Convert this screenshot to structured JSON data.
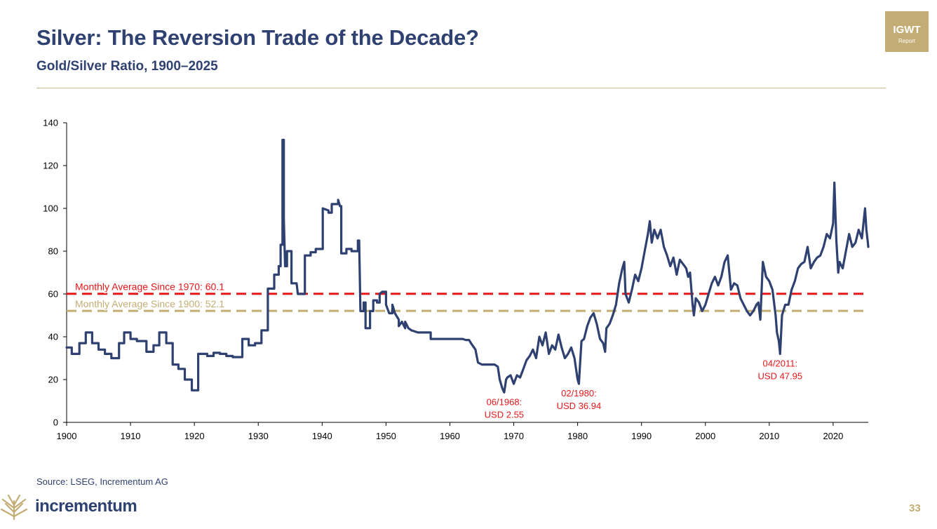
{
  "header": {
    "title": "Silver: The Reversion Trade of the Decade?",
    "subtitle": "Gold/Silver Ratio, 1900–2025"
  },
  "badge": {
    "line1": "IGWT",
    "line2": "Report"
  },
  "footer": {
    "source": "Source: LSEG, Incrementum AG",
    "brand": "incrementum",
    "page_number": "33"
  },
  "colors": {
    "series": "#2e4170",
    "avg_1970": "#e8181a",
    "avg_1900": "#c4ad74",
    "annotation": "#e8181a",
    "title": "#2e4170"
  },
  "chart_data": {
    "type": "line",
    "title": "Gold/Silver Ratio, 1900–2025",
    "xlabel": "",
    "ylabel": "",
    "xlim": [
      1900,
      2025.5
    ],
    "ylim": [
      0,
      140
    ],
    "x_ticks": [
      1900,
      1910,
      1920,
      1930,
      1940,
      1950,
      1960,
      1970,
      1980,
      1990,
      2000,
      2010,
      2020
    ],
    "y_ticks": [
      0,
      20,
      40,
      60,
      80,
      100,
      120,
      140
    ],
    "grid": false,
    "series": [
      {
        "name": "Gold/Silver Ratio",
        "points": [
          [
            1900,
            35
          ],
          [
            1900.8,
            35
          ],
          [
            1900.8,
            32
          ],
          [
            1902,
            32
          ],
          [
            1902,
            37
          ],
          [
            1903,
            37
          ],
          [
            1903,
            42
          ],
          [
            1904,
            42
          ],
          [
            1904,
            37
          ],
          [
            1905,
            37
          ],
          [
            1905,
            34
          ],
          [
            1906,
            34
          ],
          [
            1906,
            32
          ],
          [
            1907,
            32
          ],
          [
            1907,
            30
          ],
          [
            1908.2,
            30
          ],
          [
            1908.2,
            37
          ],
          [
            1909,
            37
          ],
          [
            1909,
            42
          ],
          [
            1910,
            42
          ],
          [
            1910,
            39
          ],
          [
            1911,
            39
          ],
          [
            1911,
            38
          ],
          [
            1912,
            38
          ],
          [
            1912,
            38
          ],
          [
            1912.5,
            38
          ],
          [
            1912.5,
            33
          ],
          [
            1913.6,
            33
          ],
          [
            1913.6,
            36
          ],
          [
            1914.5,
            36
          ],
          [
            1914.5,
            42
          ],
          [
            1915.6,
            42
          ],
          [
            1915.6,
            37
          ],
          [
            1916.6,
            37
          ],
          [
            1916.6,
            27
          ],
          [
            1917.5,
            27
          ],
          [
            1917.5,
            25
          ],
          [
            1918.5,
            25
          ],
          [
            1918.5,
            20
          ],
          [
            1919.6,
            20
          ],
          [
            1919.6,
            15
          ],
          [
            1920.6,
            15
          ],
          [
            1920.6,
            32
          ],
          [
            1922,
            32
          ],
          [
            1922,
            31
          ],
          [
            1923,
            31
          ],
          [
            1923,
            32.5
          ],
          [
            1924,
            32.5
          ],
          [
            1924,
            32
          ],
          [
            1925,
            32
          ],
          [
            1925,
            31
          ],
          [
            1926,
            31
          ],
          [
            1926,
            30.5
          ],
          [
            1927.5,
            30.5
          ],
          [
            1927.5,
            39
          ],
          [
            1928.5,
            39
          ],
          [
            1928.5,
            36
          ],
          [
            1929.5,
            36
          ],
          [
            1929.5,
            37
          ],
          [
            1930.5,
            37
          ],
          [
            1930.5,
            43
          ],
          [
            1931.5,
            43
          ],
          [
            1931.5,
            62.5
          ],
          [
            1932.5,
            62.5
          ],
          [
            1932.5,
            69
          ],
          [
            1933.2,
            69
          ],
          [
            1933.2,
            73
          ],
          [
            1933.5,
            73
          ],
          [
            1933.5,
            83
          ],
          [
            1933.8,
            83
          ],
          [
            1933.8,
            132
          ],
          [
            1934,
            132
          ],
          [
            1934,
            95
          ],
          [
            1934.2,
            73
          ],
          [
            1934.5,
            73
          ],
          [
            1934.5,
            80
          ],
          [
            1935.2,
            80
          ],
          [
            1935.2,
            65
          ],
          [
            1935.8,
            65
          ],
          [
            1936,
            65
          ],
          [
            1936.2,
            60
          ],
          [
            1937.3,
            60
          ],
          [
            1937.3,
            78
          ],
          [
            1938.2,
            78
          ],
          [
            1938.2,
            79.5
          ],
          [
            1939,
            79.5
          ],
          [
            1939,
            81
          ],
          [
            1940.1,
            81
          ],
          [
            1940.1,
            100
          ],
          [
            1941,
            99
          ],
          [
            1941,
            98
          ],
          [
            1941.5,
            98
          ],
          [
            1941.5,
            102
          ],
          [
            1942.5,
            102
          ],
          [
            1942.5,
            104
          ],
          [
            1942.8,
            101
          ],
          [
            1943,
            101
          ],
          [
            1943,
            79
          ],
          [
            1943.8,
            79
          ],
          [
            1943.8,
            81
          ],
          [
            1944.6,
            81
          ],
          [
            1944.6,
            80
          ],
          [
            1945.6,
            80
          ],
          [
            1945.6,
            85
          ],
          [
            1945.8,
            85
          ],
          [
            1946,
            52
          ],
          [
            1946.5,
            52
          ],
          [
            1946.5,
            56
          ],
          [
            1946.8,
            56
          ],
          [
            1946.8,
            44
          ],
          [
            1947.5,
            44
          ],
          [
            1947.5,
            52
          ],
          [
            1948,
            52
          ],
          [
            1948,
            57
          ],
          [
            1948.6,
            57
          ],
          [
            1948.6,
            56
          ],
          [
            1949,
            56
          ],
          [
            1949,
            60
          ],
          [
            1949.4,
            61
          ],
          [
            1950,
            61
          ],
          [
            1950,
            55
          ],
          [
            1950.5,
            51
          ],
          [
            1951,
            51
          ],
          [
            1951,
            55
          ],
          [
            1951.4,
            51
          ],
          [
            1952,
            48
          ],
          [
            1952,
            45
          ],
          [
            1952.5,
            47
          ],
          [
            1953,
            44
          ],
          [
            1953,
            47
          ],
          [
            1953.5,
            44
          ],
          [
            1954,
            43
          ],
          [
            1955,
            42
          ],
          [
            1956,
            42
          ],
          [
            1957,
            42
          ],
          [
            1957,
            39
          ],
          [
            1958,
            39
          ],
          [
            1959,
            39
          ],
          [
            1960,
            39
          ],
          [
            1960.3,
            39
          ],
          [
            1961,
            39
          ],
          [
            1962,
            39
          ],
          [
            1962.5,
            38.5
          ],
          [
            1963,
            38.5
          ],
          [
            1963.3,
            37
          ],
          [
            1964,
            34
          ],
          [
            1964.4,
            28
          ],
          [
            1965,
            27
          ],
          [
            1966,
            27
          ],
          [
            1967,
            27
          ],
          [
            1967.5,
            26
          ],
          [
            1967.8,
            20
          ],
          [
            1968.2,
            16
          ],
          [
            1968.5,
            14
          ],
          [
            1968.8,
            20
          ],
          [
            1969,
            21
          ],
          [
            1969.5,
            22
          ],
          [
            1970,
            18
          ],
          [
            1970.5,
            22
          ],
          [
            1971,
            21
          ],
          [
            1971.5,
            25
          ],
          [
            1972,
            29
          ],
          [
            1972.5,
            31
          ],
          [
            1973,
            34
          ],
          [
            1973.5,
            30
          ],
          [
            1974,
            40
          ],
          [
            1974.5,
            36
          ],
          [
            1975,
            42
          ],
          [
            1975.5,
            32
          ],
          [
            1976,
            36
          ],
          [
            1976.5,
            34
          ],
          [
            1977,
            41
          ],
          [
            1977.5,
            35
          ],
          [
            1978,
            30
          ],
          [
            1978.5,
            32
          ],
          [
            1979,
            35
          ],
          [
            1979.5,
            30
          ],
          [
            1980,
            20
          ],
          [
            1980.2,
            18
          ],
          [
            1980.4,
            28
          ],
          [
            1980.6,
            38
          ],
          [
            1981,
            39
          ],
          [
            1981.5,
            45
          ],
          [
            1982,
            49
          ],
          [
            1982.5,
            51
          ],
          [
            1983,
            46
          ],
          [
            1983.5,
            39
          ],
          [
            1984,
            37
          ],
          [
            1984.3,
            33
          ],
          [
            1984.5,
            44
          ],
          [
            1985,
            46
          ],
          [
            1985.5,
            50
          ],
          [
            1986,
            55
          ],
          [
            1986.5,
            65
          ],
          [
            1987,
            72
          ],
          [
            1987.3,
            75
          ],
          [
            1987.5,
            60
          ],
          [
            1988,
            56
          ],
          [
            1988.5,
            62
          ],
          [
            1989,
            69
          ],
          [
            1989.5,
            66
          ],
          [
            1990,
            72
          ],
          [
            1990.5,
            80
          ],
          [
            1991,
            88
          ],
          [
            1991.3,
            94
          ],
          [
            1991.6,
            84
          ],
          [
            1992,
            90
          ],
          [
            1992.5,
            86
          ],
          [
            1993,
            90
          ],
          [
            1993.5,
            82
          ],
          [
            1994,
            78
          ],
          [
            1994.5,
            73
          ],
          [
            1995,
            77
          ],
          [
            1995.5,
            69
          ],
          [
            1996,
            76
          ],
          [
            1996.5,
            74
          ],
          [
            1997,
            72
          ],
          [
            1997.3,
            68
          ],
          [
            1997.6,
            70
          ],
          [
            1998,
            55
          ],
          [
            1998.2,
            50
          ],
          [
            1998.5,
            58
          ],
          [
            1999,
            56
          ],
          [
            1999.5,
            52
          ],
          [
            2000,
            55
          ],
          [
            2000.5,
            60
          ],
          [
            2001,
            65
          ],
          [
            2001.5,
            68
          ],
          [
            2002,
            64
          ],
          [
            2002.5,
            68
          ],
          [
            2003,
            75
          ],
          [
            2003.5,
            78
          ],
          [
            2004,
            62
          ],
          [
            2004.5,
            65
          ],
          [
            2005,
            64
          ],
          [
            2005.5,
            58
          ],
          [
            2006,
            55
          ],
          [
            2006.5,
            52
          ],
          [
            2007,
            50
          ],
          [
            2007.5,
            52
          ],
          [
            2008,
            55
          ],
          [
            2008.3,
            56
          ],
          [
            2008.6,
            48
          ],
          [
            2009,
            75
          ],
          [
            2009.5,
            68
          ],
          [
            2010,
            66
          ],
          [
            2010.5,
            62
          ],
          [
            2011,
            50
          ],
          [
            2011.2,
            42
          ],
          [
            2011.5,
            38
          ],
          [
            2011.7,
            32
          ],
          [
            2012,
            50
          ],
          [
            2012.5,
            55
          ],
          [
            2013,
            55
          ],
          [
            2013.5,
            62
          ],
          [
            2014,
            66
          ],
          [
            2014.5,
            72
          ],
          [
            2015,
            74
          ],
          [
            2015.5,
            75
          ],
          [
            2016,
            82
          ],
          [
            2016.5,
            72
          ],
          [
            2017,
            75
          ],
          [
            2017.5,
            77
          ],
          [
            2018,
            78
          ],
          [
            2018.5,
            82
          ],
          [
            2019,
            88
          ],
          [
            2019.5,
            86
          ],
          [
            2020,
            93
          ],
          [
            2020.2,
            112
          ],
          [
            2020.5,
            85
          ],
          [
            2020.8,
            70
          ],
          [
            2021,
            75
          ],
          [
            2021.5,
            72
          ],
          [
            2022,
            80
          ],
          [
            2022.5,
            88
          ],
          [
            2023,
            82
          ],
          [
            2023.5,
            84
          ],
          [
            2024,
            90
          ],
          [
            2024.5,
            86
          ],
          [
            2025,
            100
          ],
          [
            2025.2,
            90
          ],
          [
            2025.4,
            85
          ],
          [
            2025.5,
            82
          ]
        ]
      }
    ],
    "reference_lines": [
      {
        "name": "Monthly Average Since 1970: 60.1",
        "label": "Monthly Average Since 1970: 60.1",
        "value": 60.1,
        "color": "#e8181a",
        "style": "dashed"
      },
      {
        "name": "Monthly Average Since 1900: 52.1",
        "label": "Monthly Average Since 1900: 52.1",
        "value": 52.1,
        "color": "#c4ad74",
        "style": "dashed"
      }
    ],
    "annotations": [
      {
        "line1": "06/1968:",
        "line2": "USD 2.55",
        "x": 1968.5,
        "y": 14
      },
      {
        "line1": "02/1980:",
        "line2": "USD 36.94",
        "x": 1980.2,
        "y": 18
      },
      {
        "line1": "04/2011:",
        "line2": "USD 47.95",
        "x": 2011.7,
        "y": 32
      }
    ]
  }
}
